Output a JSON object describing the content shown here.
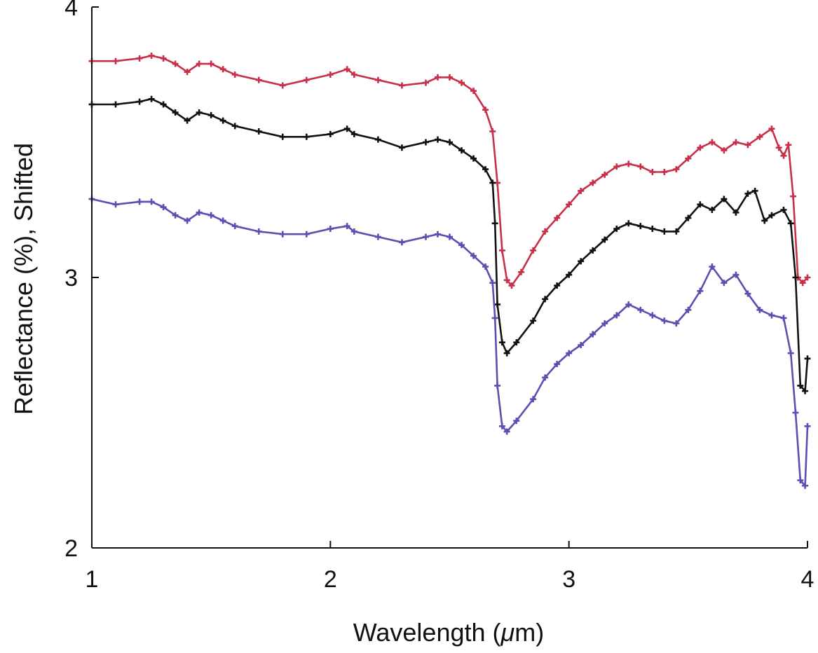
{
  "chart_data": {
    "type": "scatter",
    "title": "",
    "xlabel_prefix": "Wavelength (",
    "xlabel_mu": "μ",
    "xlabel_suffix": "m)",
    "ylabel": "Reflectance (%), Shifted",
    "xlim": [
      1,
      4
    ],
    "ylim": [
      2,
      4
    ],
    "xticks": [
      {
        "value": 1,
        "label": "1"
      },
      {
        "value": 2,
        "label": "2"
      },
      {
        "value": 3,
        "label": "3"
      },
      {
        "value": 4,
        "label": "4"
      }
    ],
    "yticks": [
      {
        "value": 2,
        "label": "2"
      },
      {
        "value": 3,
        "label": "3"
      },
      {
        "value": 4,
        "label": "4"
      }
    ],
    "grid": false,
    "legend": "none",
    "series": [
      {
        "color": "#c8304a",
        "markers": "plus",
        "fit_line": true,
        "points": [
          [
            1.0,
            3.8
          ],
          [
            1.1,
            3.8
          ],
          [
            1.2,
            3.81
          ],
          [
            1.25,
            3.82
          ],
          [
            1.3,
            3.81
          ],
          [
            1.35,
            3.79
          ],
          [
            1.4,
            3.76
          ],
          [
            1.45,
            3.79
          ],
          [
            1.5,
            3.79
          ],
          [
            1.55,
            3.77
          ],
          [
            1.6,
            3.75
          ],
          [
            1.7,
            3.73
          ],
          [
            1.8,
            3.71
          ],
          [
            1.9,
            3.73
          ],
          [
            2.0,
            3.75
          ],
          [
            2.07,
            3.77
          ],
          [
            2.1,
            3.75
          ],
          [
            2.2,
            3.73
          ],
          [
            2.3,
            3.71
          ],
          [
            2.4,
            3.72
          ],
          [
            2.45,
            3.74
          ],
          [
            2.5,
            3.74
          ],
          [
            2.55,
            3.72
          ],
          [
            2.6,
            3.69
          ],
          [
            2.65,
            3.62
          ],
          [
            2.68,
            3.54
          ],
          [
            2.7,
            3.35
          ],
          [
            2.72,
            3.1
          ],
          [
            2.74,
            2.99
          ],
          [
            2.76,
            2.97
          ],
          [
            2.8,
            3.02
          ],
          [
            2.85,
            3.1
          ],
          [
            2.9,
            3.17
          ],
          [
            2.95,
            3.22
          ],
          [
            3.0,
            3.27
          ],
          [
            3.05,
            3.32
          ],
          [
            3.1,
            3.35
          ],
          [
            3.15,
            3.38
          ],
          [
            3.2,
            3.41
          ],
          [
            3.25,
            3.42
          ],
          [
            3.3,
            3.41
          ],
          [
            3.35,
            3.39
          ],
          [
            3.4,
            3.39
          ],
          [
            3.45,
            3.4
          ],
          [
            3.5,
            3.44
          ],
          [
            3.55,
            3.48
          ],
          [
            3.6,
            3.5
          ],
          [
            3.65,
            3.47
          ],
          [
            3.7,
            3.5
          ],
          [
            3.75,
            3.49
          ],
          [
            3.8,
            3.52
          ],
          [
            3.85,
            3.55
          ],
          [
            3.88,
            3.48
          ],
          [
            3.9,
            3.45
          ],
          [
            3.92,
            3.49
          ],
          [
            3.94,
            3.3
          ],
          [
            3.96,
            3.0
          ],
          [
            3.98,
            2.98
          ],
          [
            4.0,
            3.0
          ]
        ]
      },
      {
        "color": "#111111",
        "markers": "plus",
        "fit_line": true,
        "points": [
          [
            1.0,
            3.64
          ],
          [
            1.1,
            3.64
          ],
          [
            1.2,
            3.65
          ],
          [
            1.25,
            3.66
          ],
          [
            1.3,
            3.64
          ],
          [
            1.35,
            3.61
          ],
          [
            1.4,
            3.58
          ],
          [
            1.45,
            3.61
          ],
          [
            1.5,
            3.6
          ],
          [
            1.55,
            3.58
          ],
          [
            1.6,
            3.56
          ],
          [
            1.7,
            3.54
          ],
          [
            1.8,
            3.52
          ],
          [
            1.9,
            3.52
          ],
          [
            2.0,
            3.53
          ],
          [
            2.07,
            3.55
          ],
          [
            2.1,
            3.53
          ],
          [
            2.2,
            3.51
          ],
          [
            2.3,
            3.48
          ],
          [
            2.4,
            3.5
          ],
          [
            2.45,
            3.51
          ],
          [
            2.5,
            3.5
          ],
          [
            2.55,
            3.47
          ],
          [
            2.6,
            3.44
          ],
          [
            2.65,
            3.4
          ],
          [
            2.68,
            3.35
          ],
          [
            2.69,
            3.2
          ],
          [
            2.7,
            2.9
          ],
          [
            2.72,
            2.76
          ],
          [
            2.74,
            2.72
          ],
          [
            2.78,
            2.76
          ],
          [
            2.85,
            2.84
          ],
          [
            2.9,
            2.92
          ],
          [
            2.95,
            2.97
          ],
          [
            3.0,
            3.01
          ],
          [
            3.05,
            3.06
          ],
          [
            3.1,
            3.1
          ],
          [
            3.15,
            3.14
          ],
          [
            3.2,
            3.18
          ],
          [
            3.25,
            3.2
          ],
          [
            3.3,
            3.19
          ],
          [
            3.35,
            3.18
          ],
          [
            3.4,
            3.17
          ],
          [
            3.45,
            3.17
          ],
          [
            3.5,
            3.22
          ],
          [
            3.55,
            3.27
          ],
          [
            3.6,
            3.25
          ],
          [
            3.65,
            3.29
          ],
          [
            3.7,
            3.24
          ],
          [
            3.75,
            3.31
          ],
          [
            3.78,
            3.32
          ],
          [
            3.82,
            3.21
          ],
          [
            3.85,
            3.23
          ],
          [
            3.9,
            3.25
          ],
          [
            3.93,
            3.2
          ],
          [
            3.95,
            3.0
          ],
          [
            3.97,
            2.6
          ],
          [
            3.99,
            2.58
          ],
          [
            4.0,
            2.7
          ]
        ]
      },
      {
        "color": "#5b4fb0",
        "markers": "plus",
        "fit_line": true,
        "points": [
          [
            1.0,
            3.29
          ],
          [
            1.1,
            3.27
          ],
          [
            1.2,
            3.28
          ],
          [
            1.25,
            3.28
          ],
          [
            1.3,
            3.26
          ],
          [
            1.35,
            3.23
          ],
          [
            1.4,
            3.21
          ],
          [
            1.45,
            3.24
          ],
          [
            1.5,
            3.23
          ],
          [
            1.55,
            3.21
          ],
          [
            1.6,
            3.19
          ],
          [
            1.7,
            3.17
          ],
          [
            1.8,
            3.16
          ],
          [
            1.9,
            3.16
          ],
          [
            2.0,
            3.18
          ],
          [
            2.07,
            3.19
          ],
          [
            2.1,
            3.17
          ],
          [
            2.2,
            3.15
          ],
          [
            2.3,
            3.13
          ],
          [
            2.4,
            3.15
          ],
          [
            2.45,
            3.16
          ],
          [
            2.5,
            3.15
          ],
          [
            2.55,
            3.12
          ],
          [
            2.6,
            3.08
          ],
          [
            2.65,
            3.04
          ],
          [
            2.68,
            2.98
          ],
          [
            2.69,
            2.85
          ],
          [
            2.7,
            2.6
          ],
          [
            2.72,
            2.45
          ],
          [
            2.74,
            2.43
          ],
          [
            2.78,
            2.47
          ],
          [
            2.85,
            2.55
          ],
          [
            2.9,
            2.63
          ],
          [
            2.95,
            2.68
          ],
          [
            3.0,
            2.72
          ],
          [
            3.05,
            2.75
          ],
          [
            3.1,
            2.79
          ],
          [
            3.15,
            2.83
          ],
          [
            3.2,
            2.86
          ],
          [
            3.25,
            2.9
          ],
          [
            3.3,
            2.88
          ],
          [
            3.35,
            2.86
          ],
          [
            3.4,
            2.84
          ],
          [
            3.45,
            2.83
          ],
          [
            3.5,
            2.88
          ],
          [
            3.55,
            2.95
          ],
          [
            3.6,
            3.04
          ],
          [
            3.65,
            2.98
          ],
          [
            3.7,
            3.01
          ],
          [
            3.75,
            2.94
          ],
          [
            3.8,
            2.88
          ],
          [
            3.85,
            2.86
          ],
          [
            3.9,
            2.85
          ],
          [
            3.93,
            2.72
          ],
          [
            3.95,
            2.5
          ],
          [
            3.97,
            2.25
          ],
          [
            3.99,
            2.23
          ],
          [
            4.0,
            2.45
          ]
        ]
      }
    ]
  }
}
